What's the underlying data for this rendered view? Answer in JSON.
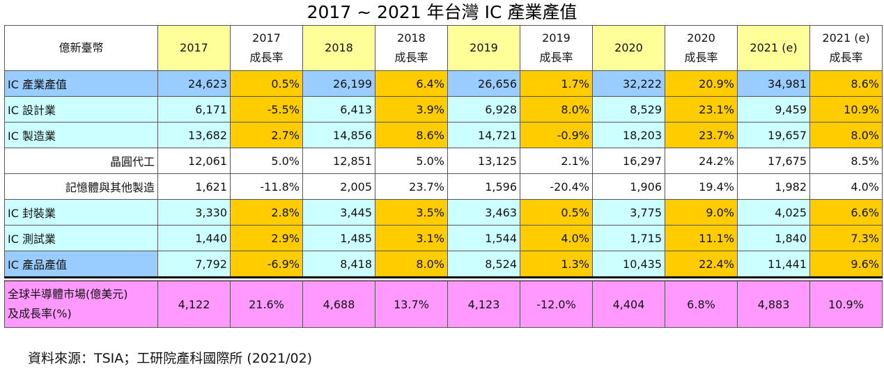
{
  "title": "2017 ~ 2021 年台灣 IC 產業產值",
  "colors": {
    "header_year": "#ffff99",
    "header_plain": "#ffffff",
    "total_label": "#99ccff",
    "value_cell": "#ccffff",
    "growth_cell": "#ffcc00",
    "market": "#ff99ff"
  },
  "table": {
    "header": {
      "unit": "億新臺幣",
      "columns": [
        {
          "l1": "2017",
          "l2": ""
        },
        {
          "l1": "2017",
          "l2": "成長率"
        },
        {
          "l1": "2018",
          "l2": ""
        },
        {
          "l1": "2018",
          "l2": "成長率"
        },
        {
          "l1": "2019",
          "l2": ""
        },
        {
          "l1": "2019",
          "l2": "成長率"
        },
        {
          "l1": "2020",
          "l2": ""
        },
        {
          "l1": "2020",
          "l2": "成長率"
        },
        {
          "l1": "2021 (e)",
          "l2": ""
        },
        {
          "l1": "2021 (e)",
          "l2": "成長率"
        }
      ]
    },
    "rows": [
      {
        "label": "IC 產業產值",
        "cells": [
          "24,623",
          "0.5%",
          "26,199",
          "6.4%",
          "26,656",
          "1.7%",
          "32,222",
          "20.9%",
          "34,981",
          "8.6%"
        ]
      },
      {
        "label": "IC 設計業",
        "cells": [
          "6,171",
          "-5.5%",
          "6,413",
          "3.9%",
          "6,928",
          "8.0%",
          "8,529",
          "23.1%",
          "9,459",
          "10.9%"
        ]
      },
      {
        "label": "IC 製造業",
        "cells": [
          "13,682",
          "2.7%",
          "14,856",
          "8.6%",
          "14,721",
          "-0.9%",
          "18,203",
          "23.7%",
          "19,657",
          "8.0%"
        ]
      },
      {
        "label": "晶圓代工",
        "cells": [
          "12,061",
          "5.0%",
          "12,851",
          "5.0%",
          "13,125",
          "2.1%",
          "16,297",
          "24.2%",
          "17,675",
          "8.5%"
        ]
      },
      {
        "label": "記憶體與其他製造",
        "cells": [
          "1,621",
          "-11.8%",
          "2,005",
          "23.7%",
          "1,596",
          "-20.4%",
          "1,906",
          "19.4%",
          "1,982",
          "4.0%"
        ]
      },
      {
        "label": "IC 封裝業",
        "cells": [
          "3,330",
          "2.8%",
          "3,445",
          "3.5%",
          "3,463",
          "0.5%",
          "3,775",
          "9.0%",
          "4,025",
          "6.6%"
        ]
      },
      {
        "label": "IC 測試業",
        "cells": [
          "1,440",
          "2.9%",
          "1,485",
          "3.1%",
          "1,544",
          "4.0%",
          "1,715",
          "11.1%",
          "1,840",
          "7.3%"
        ]
      },
      {
        "label": "IC 產品產值",
        "cells": [
          "7,792",
          "-6.9%",
          "8,418",
          "8.0%",
          "8,524",
          "1.3%",
          "10,435",
          "22.4%",
          "11,441",
          "9.6%"
        ]
      }
    ],
    "market": {
      "label_line1": "全球半導體市場(億美元)",
      "label_line2": "及成長率(%)",
      "cells": [
        "4,122",
        "21.6%",
        "4,688",
        "13.7%",
        "4,123",
        "-12.0%",
        "4,404",
        "6.8%",
        "4,883",
        "10.9%"
      ]
    }
  },
  "source": "資料來源：TSIA；工研院產科國際所  (2021/02)"
}
